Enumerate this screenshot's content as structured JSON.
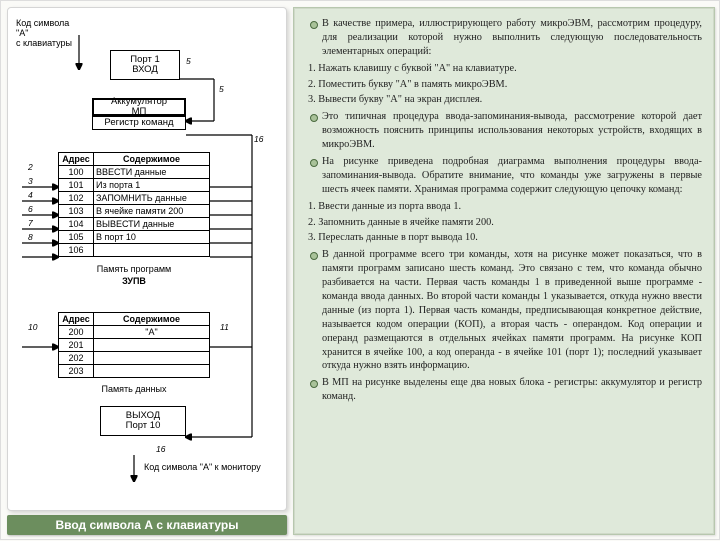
{
  "caption": "Ввод символа А с клавиатуры",
  "topLabel": "Код символа \"А\"\nс клавиатуры",
  "bottomLabel": "Код символа \"А\" к монитору",
  "port_in": "Порт 1\nВХОД",
  "mp_acc": "Аккумулятор\nМП",
  "mp_reg": "Регистр команд",
  "port_out": "ВЫХОД\nПорт 10",
  "prog_hdr_addr": "Адрес",
  "prog_hdr_cont": "Содержимое",
  "prog_rows": [
    {
      "a": "100",
      "c": "ВВЕСТИ данные"
    },
    {
      "a": "101",
      "c": "Из порта 1"
    },
    {
      "a": "102",
      "c": "ЗАПОМНИТЬ данные"
    },
    {
      "a": "103",
      "c": "В ячейке памяти 200"
    },
    {
      "a": "104",
      "c": "ВЫВЕСТИ данные"
    },
    {
      "a": "105",
      "c": "В порт 10"
    },
    {
      "a": "106",
      "c": ""
    }
  ],
  "prog_caption_top": "Память программ",
  "prog_caption_bottom": "ЗУПВ",
  "data_rows": [
    {
      "a": "200",
      "c": "\"А\""
    },
    {
      "a": "201",
      "c": ""
    },
    {
      "a": "202",
      "c": ""
    },
    {
      "a": "203",
      "c": ""
    }
  ],
  "data_caption": "Память данных",
  "arrow_nums": [
    "5",
    "5",
    "16",
    "2",
    "3",
    "4",
    "6",
    "7",
    "8",
    "9",
    "10",
    "12",
    "14",
    "13",
    "14",
    "11",
    "16"
  ],
  "text": {
    "b1": "В качестве примера, иллюстрирующего работу микроЭВМ, рассмотрим процедуру, для реализации которой нужно выполнить следующую последовательность элементарных операций:",
    "n1": "1. Нажать клавишу с буквой \"А\" на клавиатуре.",
    "n2": "2. Поместить букву \"А\" в память микроЭВМ.",
    "n3": "3. Вывести букву \"А\" на экран дисплея.",
    "b2": "Это типичная процедура ввода-запоминания-вывода, рассмотрение которой дает возможность пояснить принципы использования некоторых устройств, входящих в микроЭВМ.",
    "b3": "На рисунке приведена подробная диаграмма выполнения процедуры ввода-запоминания-вывода. Обратите внимание, что команды уже загружены в первые шесть ячеек памяти. Хранимая программа содержит следующую цепочку команд:",
    "n4": "1. Ввести данные из порта ввода 1.",
    "n5": "2. Запомнить данные в ячейке памяти 200.",
    "n6": "3. Переслать данные в порт вывода 10.",
    "b4": "В данной программе всего три команды, хотя на рисунке может показаться, что в памяти программ записано шесть команд. Это связано с тем, что команда обычно разбивается на части. Первая часть команды 1 в приведенной выше программе - команда ввода данных. Во второй части команды 1 указывается, откуда нужно ввести данные (из порта 1). Первая часть команды, предписывающая конкретное действие, называется кодом операции (КОП), а вторая часть - операндом. Код операции и операнд размещаются в отдельных ячейках памяти программ. На рисунке КОП хранится в ячейке 100, а код операнда - в ячейке 101 (порт 1); последний указывает откуда нужно взять информацию.",
    "b5": "В МП на рисунке  выделены еще два новых блока - регистры: аккумулятор и регистр команд."
  }
}
